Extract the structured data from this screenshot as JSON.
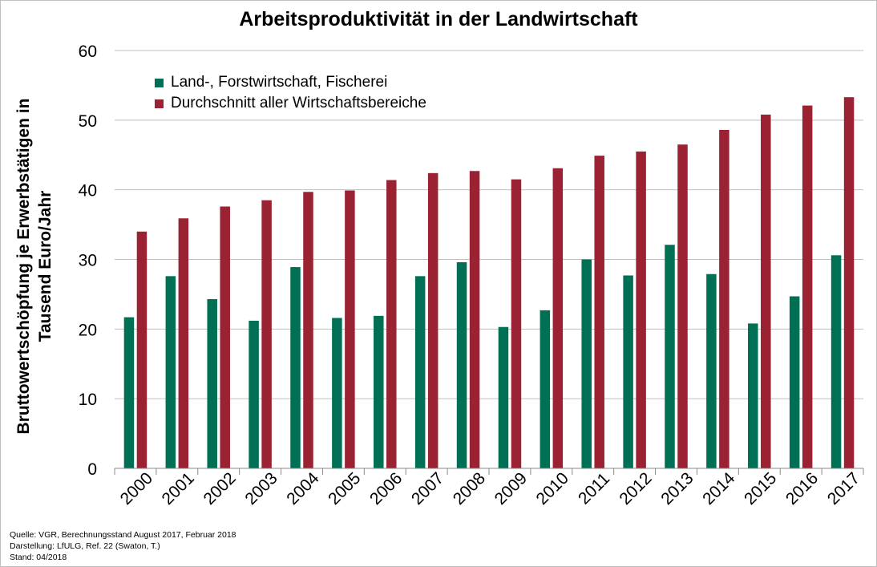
{
  "footer": {
    "source": "Quelle: VGR,  Berechnungsstand August 2017, Februar 2018",
    "author": "Darstellung: LfULG, Ref. 22 (Swaton, T.)",
    "date": "Stand: 04/2018"
  },
  "chart_data": {
    "type": "bar",
    "title": "Arbeitsproduktivität in der Landwirtschaft",
    "ylabel_lines": [
      "Bruttowertschöpfung je Erwerbstätigen in",
      "Tausend Euro/Jahr"
    ],
    "xlabel": "",
    "ylim": [
      0,
      60
    ],
    "yticks": [
      0,
      10,
      20,
      30,
      40,
      50,
      60
    ],
    "grid": true,
    "legend_position": "top-left",
    "categories": [
      "2000",
      "2001",
      "2002",
      "2003",
      "2004",
      "2005",
      "2006",
      "2007",
      "2008",
      "2009",
      "2010",
      "2011",
      "2012",
      "2013",
      "2014",
      "2015",
      "2016",
      "2017"
    ],
    "series": [
      {
        "name": "Land-, Forstwirtschaft, Fischerei",
        "color": "#007055",
        "values": [
          21.7,
          27.6,
          24.3,
          21.2,
          28.9,
          21.6,
          21.9,
          27.6,
          29.6,
          20.3,
          22.7,
          30.0,
          27.7,
          32.1,
          27.9,
          20.8,
          24.7,
          30.6
        ]
      },
      {
        "name": "Durchschnitt aller Wirtschaftsbereiche",
        "color": "#9b2233",
        "values": [
          34.0,
          35.9,
          37.6,
          38.5,
          39.7,
          39.9,
          41.4,
          42.4,
          42.7,
          41.5,
          43.1,
          44.9,
          45.5,
          46.5,
          48.6,
          50.8,
          52.1,
          53.3
        ]
      }
    ]
  }
}
